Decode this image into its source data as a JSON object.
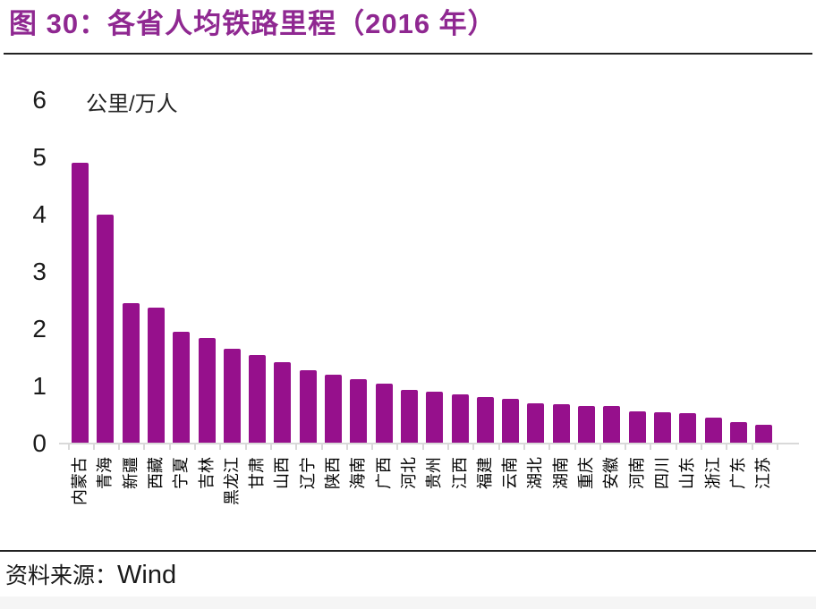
{
  "header": {
    "title": "图 30：各省人均铁路里程（2016 年）"
  },
  "footer": {
    "source_label": "资料来源：",
    "source_value": "Wind"
  },
  "colors": {
    "bar": "#96108C",
    "title": "#8F2891",
    "axis": "#D9D9D9",
    "rule": "#222222"
  },
  "chart_data": {
    "type": "bar",
    "title": "各省人均铁路里程（2016 年）",
    "unit_label": "公里/万人",
    "xlabel": "",
    "ylabel": "公里/万人",
    "ylim": [
      0,
      6
    ],
    "yticks": [
      0,
      1,
      2,
      3,
      4,
      5,
      6
    ],
    "grid": false,
    "legend": "none",
    "categories": [
      "内蒙古",
      "青海",
      "新疆",
      "西藏",
      "宁夏",
      "吉林",
      "黑龙江",
      "甘肃",
      "山西",
      "辽宁",
      "陕西",
      "海南",
      "广西",
      "河北",
      "贵州",
      "江西",
      "福建",
      "云南",
      "湖北",
      "湖南",
      "重庆",
      "安徽",
      "河南",
      "四川",
      "山东",
      "浙江",
      "广东",
      "江苏"
    ],
    "values": [
      4.9,
      4.0,
      2.45,
      2.38,
      1.95,
      1.85,
      1.65,
      1.55,
      1.42,
      1.28,
      1.2,
      1.12,
      1.05,
      0.93,
      0.9,
      0.86,
      0.82,
      0.78,
      0.7,
      0.68,
      0.66,
      0.65,
      0.57,
      0.55,
      0.53,
      0.45,
      0.37,
      0.33
    ]
  }
}
